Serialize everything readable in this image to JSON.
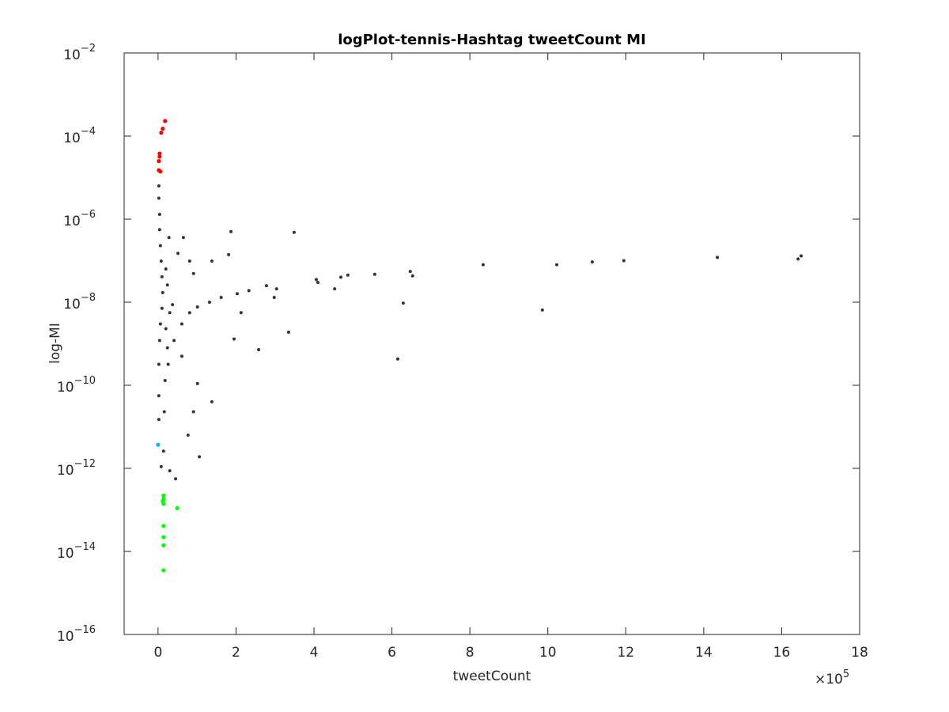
{
  "chart_data": {
    "type": "scatter",
    "title": "logPlot-tennis-Hashtag tweetCount MI",
    "x_label": "tweetCount",
    "y_label": "log-MI",
    "x_multiplier": {
      "base": "×10",
      "exponent": "5"
    },
    "yscale": "log",
    "box": true,
    "xlim": [
      -0.87,
      18
    ],
    "xticks": [
      0,
      2,
      4,
      6,
      8,
      10,
      12,
      14,
      16,
      18
    ],
    "ylim": [
      1e-16,
      0.01
    ],
    "yticks": [
      {
        "value": 1e-16,
        "label": "10",
        "exponent": "−16"
      },
      {
        "value": 1e-14,
        "label": "10",
        "exponent": "−14"
      },
      {
        "value": 1e-12,
        "label": "10",
        "exponent": "−12"
      },
      {
        "value": 1e-10,
        "label": "10",
        "exponent": "−10"
      },
      {
        "value": 1e-08,
        "label": "10",
        "exponent": "−8"
      },
      {
        "value": 1e-06,
        "label": "10",
        "exponent": "−6"
      },
      {
        "value": 0.0001,
        "label": "10",
        "exponent": "−4"
      },
      {
        "value": 0.01,
        "label": "10",
        "exponent": "−2"
      }
    ],
    "series": [
      {
        "color": "#333333",
        "x": [
          16.5,
          16.42,
          14.35,
          11.95,
          11.14,
          10.23,
          8.34,
          9.86,
          6.29,
          6.53,
          6.47,
          6.15,
          5.56,
          4.87,
          4.69,
          4.53,
          4.06,
          4.1,
          3.49,
          3.35,
          3.04,
          2.98,
          2.78,
          1.87,
          1.81,
          2.58,
          1.95,
          2.13,
          0.81,
          1.01,
          1.32,
          1.62,
          2.03,
          2.33,
          0.61,
          0.41,
          1.38,
          1.06,
          1.01,
          0.91,
          0.77,
          0.45,
          0.3,
          0.65,
          0.81,
          0.51,
          1.38,
          0.91,
          0.61,
          0.26,
          0.02,
          0.02,
          0.04,
          0.04,
          0.06,
          0.08,
          0.1,
          0.12,
          0.1,
          0.06,
          0.04,
          0.02,
          0.02,
          0.02,
          0.08,
          0.2,
          0.24,
          0.18,
          0.16,
          0.14,
          0.3,
          0.37,
          0.24,
          0.2,
          0.28
        ],
        "values": [
          1.3e-07,
          1.1e-07,
          1.2e-07,
          1e-07,
          9.3e-08,
          8e-08,
          8e-08,
          6.5e-09,
          9.5e-09,
          4.3e-08,
          5.5e-08,
          4.3e-10,
          4.7e-08,
          4.5e-08,
          4e-08,
          2.1e-08,
          3.5e-08,
          3e-08,
          4.8e-07,
          1.9e-09,
          2.1e-08,
          1.3e-08,
          2.5e-08,
          5e-07,
          1.4e-07,
          7.2e-10,
          1.3e-09,
          5.6e-09,
          5.6e-09,
          7.7e-09,
          1e-08,
          1.3e-08,
          1.6e-08,
          1.9e-08,
          3e-09,
          1.2e-09,
          4e-11,
          1.9e-12,
          1.1e-10,
          2.3e-11,
          6.3e-12,
          5.6e-13,
          8.7e-13,
          3.6e-07,
          9.8e-08,
          1.5e-07,
          9.8e-08,
          4.9e-08,
          5e-10,
          3.2e-10,
          6.3e-06,
          3.2e-06,
          1.3e-06,
          5.6e-07,
          2.3e-07,
          9.8e-08,
          4.1e-08,
          1.7e-08,
          7.1e-09,
          3e-09,
          1.2e-09,
          3.2e-10,
          5.6e-11,
          1.5e-11,
          1.1e-12,
          2.3e-09,
          8e-10,
          1.3e-10,
          2.3e-11,
          2.6e-12,
          5.6e-09,
          8.7e-09,
          2.6e-08,
          6.3e-08,
          3.6e-07
        ]
      },
      {
        "color": "#ff0000",
        "x": [
          0.18,
          0.12,
          0.08,
          0.04,
          0.04,
          0.02,
          0.02,
          0.06
        ],
        "values": [
          0.00023,
          0.00015,
          0.00012,
          3.8e-05,
          3.2e-05,
          2.5e-05,
          1.5e-05,
          1.4e-05
        ]
      },
      {
        "color": "#00bfff",
        "x": [
          0
        ],
        "values": [
          3.7e-12
        ]
      },
      {
        "color": "#00ff00",
        "x": [
          0.14,
          0.14,
          0.12,
          0.14,
          0.49,
          0.14,
          0.14,
          0.14,
          0.14
        ],
        "values": [
          2.2e-13,
          1.8e-13,
          1.6e-13,
          1.4e-13,
          1.1e-13,
          4.1e-14,
          2.2e-14,
          1.4e-14,
          3.5e-15
        ]
      }
    ]
  }
}
